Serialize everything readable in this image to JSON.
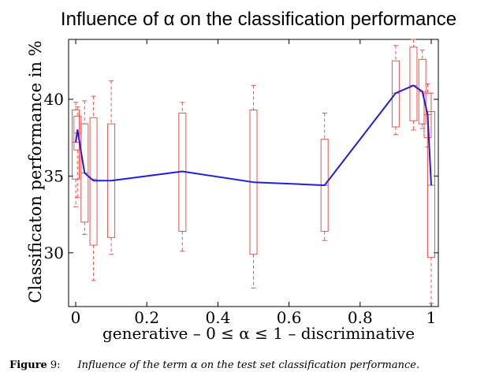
{
  "chart_data": {
    "type": "boxplot",
    "title": "Influence of α on the classification performance",
    "xlabel": "generative – 0 ≤ α ≤ 1 – discriminative",
    "ylabel": "Classificaton performance in %",
    "xlim": [
      -0.02,
      1.02
    ],
    "ylim": [
      26.5,
      43.9
    ],
    "x_ticks": [
      0,
      0.2,
      0.4,
      0.6,
      0.8,
      1
    ],
    "x_tick_labels": [
      "0",
      "0.2",
      "0.4",
      "0.6",
      "0.8",
      "1"
    ],
    "y_ticks": [
      30,
      35,
      40
    ],
    "y_tick_labels": [
      "30",
      "35",
      "40"
    ],
    "grid": false,
    "box_color": "#e8524f",
    "line_color": "#1f1fd6",
    "boxes": [
      {
        "x": 0.0,
        "whisker_low": 33.0,
        "q1": 34.8,
        "median": 37.2,
        "q3": 39.3,
        "whisker_high": 39.8
      },
      {
        "x": 0.005,
        "whisker_low": 33.6,
        "q1": 36.7,
        "median": 37.8,
        "q3": 38.9,
        "whisker_high": 39.5
      },
      {
        "x": 0.025,
        "whisker_low": 31.2,
        "q1": 32.0,
        "median": 35.2,
        "q3": 38.4,
        "whisker_high": 39.9
      },
      {
        "x": 0.05,
        "whisker_low": 28.2,
        "q1": 30.5,
        "median": 34.8,
        "q3": 38.8,
        "whisker_high": 40.2
      },
      {
        "x": 0.1,
        "whisker_low": 29.9,
        "q1": 31.0,
        "median": 34.7,
        "q3": 38.4,
        "whisker_high": 41.2
      },
      {
        "x": 0.3,
        "whisker_low": 30.1,
        "q1": 31.4,
        "median": 35.3,
        "q3": 39.1,
        "whisker_high": 39.8
      },
      {
        "x": 0.5,
        "whisker_low": 27.7,
        "q1": 29.9,
        "median": 34.6,
        "q3": 39.3,
        "whisker_high": 40.9
      },
      {
        "x": 0.7,
        "whisker_low": 30.8,
        "q1": 31.4,
        "median": 34.4,
        "q3": 37.4,
        "whisker_high": 39.1
      },
      {
        "x": 0.9,
        "whisker_low": 37.7,
        "q1": 38.2,
        "median": 40.4,
        "q3": 42.5,
        "whisker_high": 43.5
      },
      {
        "x": 0.95,
        "whisker_low": 38.0,
        "q1": 38.6,
        "median": 40.9,
        "q3": 43.4,
        "whisker_high": 43.9
      },
      {
        "x": 0.975,
        "whisker_low": 38.1,
        "q1": 38.4,
        "median": 40.5,
        "q3": 42.6,
        "whisker_high": 43.2
      },
      {
        "x": 0.99,
        "whisker_low": 36.9,
        "q1": 37.5,
        "median": 39.0,
        "q3": 40.4,
        "whisker_high": 41.0
      },
      {
        "x": 1.0,
        "whisker_low": 26.7,
        "q1": 29.7,
        "median": 34.4,
        "q3": 39.2,
        "whisker_high": 40.4
      }
    ],
    "mean_line": {
      "x": [
        0.0,
        0.005,
        0.025,
        0.05,
        0.1,
        0.3,
        0.5,
        0.7,
        0.9,
        0.95,
        0.975,
        0.99,
        1.0
      ],
      "y": [
        37.2,
        38.0,
        35.2,
        34.7,
        34.7,
        35.3,
        34.6,
        34.4,
        40.4,
        40.9,
        40.5,
        39.0,
        34.4
      ]
    }
  },
  "caption": {
    "label": "Figure",
    "number": "9:",
    "text": "Influence of the term α on the test set classification performance."
  }
}
